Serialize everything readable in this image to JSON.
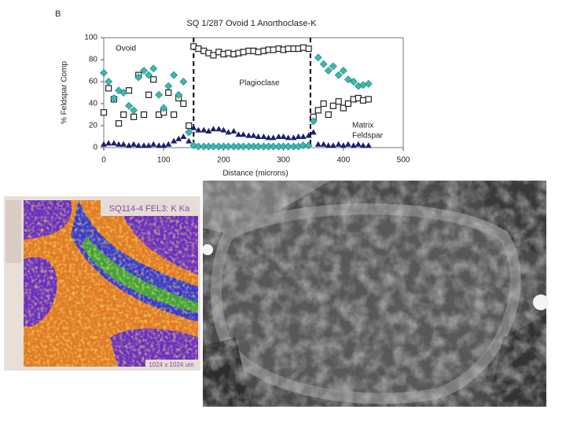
{
  "chart_data": {
    "type": "scatter",
    "panel_label": "B",
    "title": "SQ 1/287 Ovoid 1 Anorthoclase-K",
    "x_label": "Distance (microns)",
    "y_label": "% Feldspar Comp",
    "annotations": [
      "Ovoid",
      "Plagioclase",
      "Matrix",
      "Feldspar"
    ],
    "vlines": [
      150,
      345
    ],
    "xlim": [
      0,
      500
    ],
    "xticks": [
      0,
      100,
      200,
      300,
      400,
      500
    ],
    "ylim": [
      0,
      100
    ],
    "yticks": [
      0,
      20,
      40,
      60,
      80,
      100
    ],
    "series": [
      {
        "marker": "square",
        "color": "#222222",
        "x": [
          0,
          8,
          17,
          25,
          33,
          42,
          50,
          58,
          67,
          75,
          83,
          92,
          100,
          108,
          117,
          125,
          133,
          142,
          150,
          158,
          167,
          175,
          183,
          192,
          200,
          208,
          217,
          225,
          233,
          242,
          250,
          258,
          267,
          275,
          283,
          292,
          300,
          308,
          317,
          325,
          333,
          342,
          350,
          358,
          367,
          375,
          383,
          392,
          400,
          408,
          417,
          425,
          433,
          442
        ],
        "values": [
          32,
          54,
          44,
          22,
          30,
          52,
          28,
          66,
          30,
          48,
          62,
          30,
          32,
          50,
          30,
          45,
          40,
          20,
          92,
          90,
          88,
          86,
          84,
          87,
          85,
          86,
          85,
          86,
          87,
          88,
          88,
          87,
          88,
          89,
          89,
          90,
          89,
          90,
          90,
          90,
          91,
          90,
          28,
          34,
          40,
          30,
          38,
          42,
          36,
          40,
          44,
          45,
          43,
          44
        ]
      },
      {
        "marker": "diamond",
        "color": "#3bb8b0",
        "x": [
          0,
          8,
          17,
          25,
          33,
          42,
          50,
          58,
          67,
          75,
          83,
          92,
          100,
          108,
          117,
          125,
          133,
          142,
          150,
          158,
          167,
          175,
          183,
          192,
          200,
          208,
          217,
          225,
          233,
          242,
          250,
          258,
          267,
          275,
          283,
          292,
          300,
          308,
          317,
          325,
          333,
          342,
          350,
          358,
          367,
          375,
          383,
          392,
          400,
          408,
          417,
          425,
          433,
          442
        ],
        "values": [
          68,
          60,
          45,
          52,
          50,
          38,
          34,
          64,
          70,
          66,
          72,
          48,
          36,
          56,
          66,
          48,
          60,
          14,
          2,
          1,
          1,
          1,
          1,
          1,
          1,
          1,
          1,
          1,
          1,
          1,
          1,
          1,
          1,
          1,
          1,
          1,
          1,
          1,
          1,
          1,
          2,
          2,
          24,
          82,
          76,
          70,
          74,
          66,
          70,
          62,
          60,
          56,
          57,
          58
        ]
      },
      {
        "marker": "triangle",
        "color": "#1a1f6e",
        "x": [
          0,
          8,
          17,
          25,
          33,
          42,
          50,
          58,
          67,
          75,
          83,
          92,
          100,
          108,
          117,
          125,
          133,
          142,
          150,
          158,
          167,
          175,
          183,
          192,
          200,
          208,
          217,
          225,
          233,
          242,
          250,
          258,
          267,
          275,
          283,
          292,
          300,
          308,
          317,
          325,
          333,
          342,
          350,
          358,
          367,
          375,
          383,
          392,
          400,
          408,
          417,
          425,
          433,
          442
        ],
        "values": [
          3,
          4,
          4,
          3,
          3,
          2,
          3,
          2,
          2,
          2,
          3,
          2,
          2,
          3,
          6,
          8,
          10,
          6,
          18,
          16,
          16,
          15,
          17,
          17,
          16,
          14,
          15,
          12,
          12,
          11,
          11,
          10,
          10,
          9,
          9,
          10,
          10,
          9,
          9,
          10,
          10,
          11,
          14,
          3,
          3,
          2,
          2,
          3,
          2,
          3,
          2,
          3,
          2,
          2
        ]
      }
    ]
  },
  "images": {
    "map_label": "SQ114-4 FEL3: K Ka",
    "scale_label": "1024 x 1024 um"
  }
}
